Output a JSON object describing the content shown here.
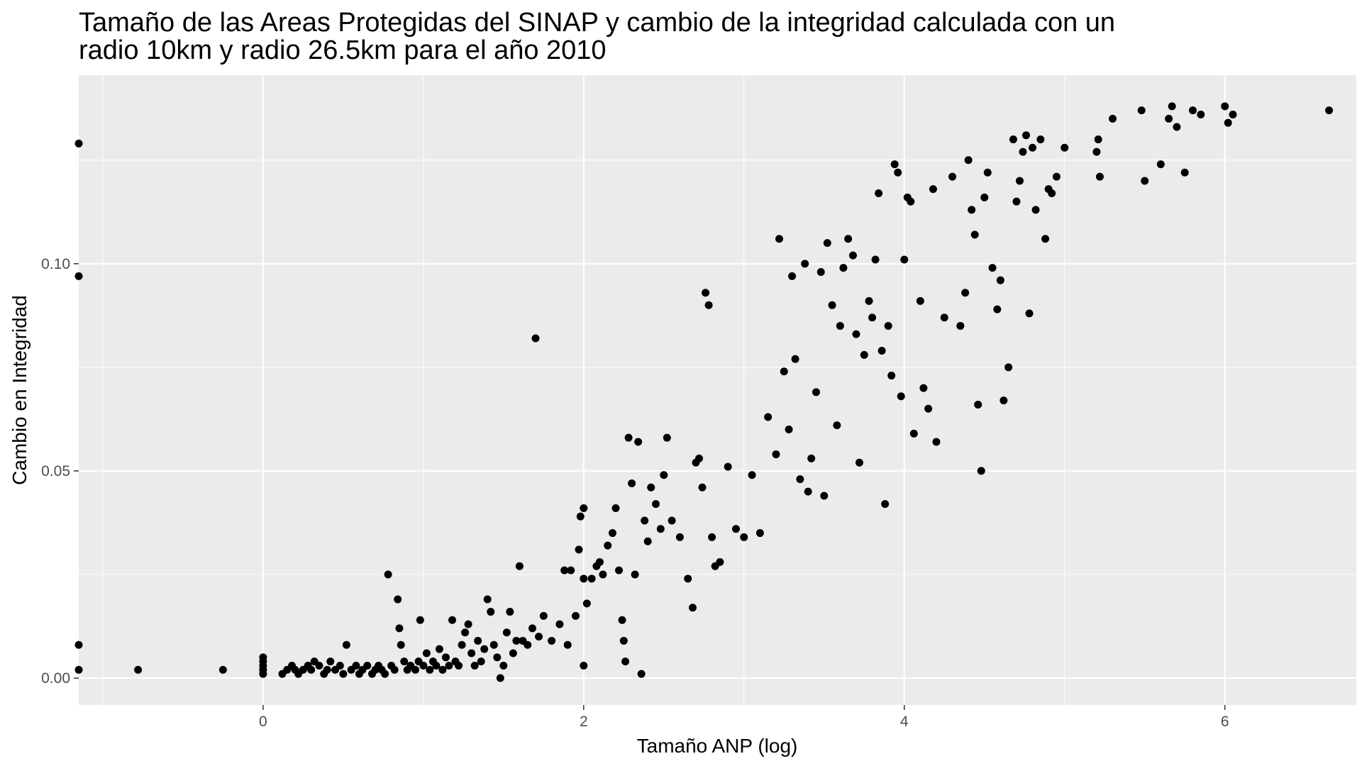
{
  "chart_data": {
    "type": "scatter",
    "title_lines": [
      "Tamaño de las Areas Protegidas del SINAP y cambio de la integridad calculada con un",
      "radio 10km y radio 26.5km para el año 2010"
    ],
    "xlabel": "Tamaño ANP (log)",
    "ylabel": "Cambio en Integridad",
    "xlim": [
      -1.15,
      6.82
    ],
    "ylim": [
      -0.0065,
      0.1455
    ],
    "x_ticks": [
      0,
      2,
      4,
      6
    ],
    "x_tick_labels": [
      "0",
      "2",
      "4",
      "6"
    ],
    "y_ticks": [
      0.0,
      0.05,
      0.1
    ],
    "y_tick_labels": [
      "0.00",
      "0.05",
      "0.10"
    ],
    "grid": true,
    "legend": "none",
    "colors": {
      "panel": "#ebebeb",
      "grid": "#ffffff",
      "point": "#000000",
      "tick": "#333333"
    },
    "points": [
      [
        -1.15,
        0.129
      ],
      [
        -1.15,
        0.097
      ],
      [
        -1.15,
        0.008
      ],
      [
        -1.15,
        0.002
      ],
      [
        -0.78,
        0.002
      ],
      [
        -0.25,
        0.002
      ],
      [
        0.0,
        0.005
      ],
      [
        0.0,
        0.004
      ],
      [
        0.0,
        0.003
      ],
      [
        0.0,
        0.002
      ],
      [
        0.0,
        0.001
      ],
      [
        0.12,
        0.001
      ],
      [
        0.15,
        0.002
      ],
      [
        0.18,
        0.003
      ],
      [
        0.2,
        0.002
      ],
      [
        0.22,
        0.001
      ],
      [
        0.25,
        0.002
      ],
      [
        0.28,
        0.003
      ],
      [
        0.3,
        0.002
      ],
      [
        0.32,
        0.004
      ],
      [
        0.35,
        0.003
      ],
      [
        0.38,
        0.001
      ],
      [
        0.4,
        0.002
      ],
      [
        0.42,
        0.004
      ],
      [
        0.45,
        0.002
      ],
      [
        0.48,
        0.003
      ],
      [
        0.5,
        0.001
      ],
      [
        0.52,
        0.008
      ],
      [
        0.55,
        0.002
      ],
      [
        0.58,
        0.003
      ],
      [
        0.6,
        0.001
      ],
      [
        0.62,
        0.002
      ],
      [
        0.65,
        0.003
      ],
      [
        0.68,
        0.001
      ],
      [
        0.7,
        0.002
      ],
      [
        0.72,
        0.003
      ],
      [
        0.74,
        0.002
      ],
      [
        0.76,
        0.001
      ],
      [
        0.78,
        0.025
      ],
      [
        0.8,
        0.003
      ],
      [
        0.82,
        0.002
      ],
      [
        0.84,
        0.019
      ],
      [
        0.85,
        0.012
      ],
      [
        0.86,
        0.008
      ],
      [
        0.88,
        0.004
      ],
      [
        0.9,
        0.002
      ],
      [
        0.92,
        0.003
      ],
      [
        0.95,
        0.002
      ],
      [
        0.97,
        0.004
      ],
      [
        0.98,
        0.014
      ],
      [
        1.0,
        0.003
      ],
      [
        1.02,
        0.006
      ],
      [
        1.04,
        0.002
      ],
      [
        1.06,
        0.004
      ],
      [
        1.08,
        0.003
      ],
      [
        1.1,
        0.007
      ],
      [
        1.12,
        0.002
      ],
      [
        1.14,
        0.005
      ],
      [
        1.16,
        0.003
      ],
      [
        1.18,
        0.014
      ],
      [
        1.2,
        0.004
      ],
      [
        1.22,
        0.003
      ],
      [
        1.24,
        0.008
      ],
      [
        1.26,
        0.011
      ],
      [
        1.28,
        0.013
      ],
      [
        1.3,
        0.006
      ],
      [
        1.32,
        0.003
      ],
      [
        1.34,
        0.009
      ],
      [
        1.36,
        0.004
      ],
      [
        1.38,
        0.007
      ],
      [
        1.4,
        0.019
      ],
      [
        1.42,
        0.016
      ],
      [
        1.44,
        0.008
      ],
      [
        1.46,
        0.005
      ],
      [
        1.48,
        0.0
      ],
      [
        1.5,
        0.003
      ],
      [
        1.52,
        0.011
      ],
      [
        1.54,
        0.016
      ],
      [
        1.56,
        0.006
      ],
      [
        1.58,
        0.009
      ],
      [
        1.6,
        0.027
      ],
      [
        1.62,
        0.009
      ],
      [
        1.65,
        0.008
      ],
      [
        1.68,
        0.012
      ],
      [
        1.7,
        0.082
      ],
      [
        1.72,
        0.01
      ],
      [
        1.75,
        0.015
      ],
      [
        1.8,
        0.009
      ],
      [
        1.85,
        0.013
      ],
      [
        1.88,
        0.026
      ],
      [
        1.9,
        0.008
      ],
      [
        1.92,
        0.026
      ],
      [
        1.95,
        0.015
      ],
      [
        1.97,
        0.031
      ],
      [
        1.98,
        0.039
      ],
      [
        2.0,
        0.041
      ],
      [
        2.0,
        0.024
      ],
      [
        2.0,
        0.003
      ],
      [
        2.02,
        0.018
      ],
      [
        2.05,
        0.024
      ],
      [
        2.08,
        0.027
      ],
      [
        2.1,
        0.028
      ],
      [
        2.12,
        0.025
      ],
      [
        2.15,
        0.032
      ],
      [
        2.18,
        0.035
      ],
      [
        2.2,
        0.041
      ],
      [
        2.22,
        0.026
      ],
      [
        2.24,
        0.014
      ],
      [
        2.25,
        0.009
      ],
      [
        2.26,
        0.004
      ],
      [
        2.28,
        0.058
      ],
      [
        2.3,
        0.047
      ],
      [
        2.32,
        0.025
      ],
      [
        2.34,
        0.057
      ],
      [
        2.36,
        0.001
      ],
      [
        2.38,
        0.038
      ],
      [
        2.4,
        0.033
      ],
      [
        2.42,
        0.046
      ],
      [
        2.45,
        0.042
      ],
      [
        2.48,
        0.036
      ],
      [
        2.5,
        0.049
      ],
      [
        2.52,
        0.058
      ],
      [
        2.55,
        0.038
      ],
      [
        2.6,
        0.034
      ],
      [
        2.65,
        0.024
      ],
      [
        2.68,
        0.017
      ],
      [
        2.7,
        0.052
      ],
      [
        2.72,
        0.053
      ],
      [
        2.74,
        0.046
      ],
      [
        2.76,
        0.093
      ],
      [
        2.78,
        0.09
      ],
      [
        2.8,
        0.034
      ],
      [
        2.82,
        0.027
      ],
      [
        2.85,
        0.028
      ],
      [
        2.9,
        0.051
      ],
      [
        2.95,
        0.036
      ],
      [
        3.0,
        0.034
      ],
      [
        3.05,
        0.049
      ],
      [
        3.1,
        0.035
      ],
      [
        3.15,
        0.063
      ],
      [
        3.2,
        0.054
      ],
      [
        3.22,
        0.106
      ],
      [
        3.25,
        0.074
      ],
      [
        3.28,
        0.06
      ],
      [
        3.3,
        0.097
      ],
      [
        3.32,
        0.077
      ],
      [
        3.35,
        0.048
      ],
      [
        3.38,
        0.1
      ],
      [
        3.4,
        0.045
      ],
      [
        3.42,
        0.053
      ],
      [
        3.45,
        0.069
      ],
      [
        3.48,
        0.098
      ],
      [
        3.5,
        0.044
      ],
      [
        3.52,
        0.105
      ],
      [
        3.55,
        0.09
      ],
      [
        3.58,
        0.061
      ],
      [
        3.6,
        0.085
      ],
      [
        3.62,
        0.099
      ],
      [
        3.65,
        0.106
      ],
      [
        3.68,
        0.102
      ],
      [
        3.7,
        0.083
      ],
      [
        3.72,
        0.052
      ],
      [
        3.75,
        0.078
      ],
      [
        3.78,
        0.091
      ],
      [
        3.8,
        0.087
      ],
      [
        3.82,
        0.101
      ],
      [
        3.84,
        0.117
      ],
      [
        3.86,
        0.079
      ],
      [
        3.88,
        0.042
      ],
      [
        3.9,
        0.085
      ],
      [
        3.92,
        0.073
      ],
      [
        3.94,
        0.124
      ],
      [
        3.96,
        0.122
      ],
      [
        3.98,
        0.068
      ],
      [
        4.0,
        0.101
      ],
      [
        4.02,
        0.116
      ],
      [
        4.04,
        0.115
      ],
      [
        4.06,
        0.059
      ],
      [
        4.1,
        0.091
      ],
      [
        4.12,
        0.07
      ],
      [
        4.15,
        0.065
      ],
      [
        4.18,
        0.118
      ],
      [
        4.2,
        0.057
      ],
      [
        4.25,
        0.087
      ],
      [
        4.3,
        0.121
      ],
      [
        4.35,
        0.085
      ],
      [
        4.38,
        0.093
      ],
      [
        4.4,
        0.125
      ],
      [
        4.42,
        0.113
      ],
      [
        4.44,
        0.107
      ],
      [
        4.46,
        0.066
      ],
      [
        4.48,
        0.05
      ],
      [
        4.5,
        0.116
      ],
      [
        4.52,
        0.122
      ],
      [
        4.55,
        0.099
      ],
      [
        4.58,
        0.089
      ],
      [
        4.6,
        0.096
      ],
      [
        4.62,
        0.067
      ],
      [
        4.65,
        0.075
      ],
      [
        4.68,
        0.13
      ],
      [
        4.7,
        0.115
      ],
      [
        4.72,
        0.12
      ],
      [
        4.74,
        0.127
      ],
      [
        4.76,
        0.131
      ],
      [
        4.78,
        0.088
      ],
      [
        4.8,
        0.128
      ],
      [
        4.82,
        0.113
      ],
      [
        4.85,
        0.13
      ],
      [
        4.88,
        0.106
      ],
      [
        4.9,
        0.118
      ],
      [
        4.92,
        0.117
      ],
      [
        4.95,
        0.121
      ],
      [
        5.0,
        0.128
      ],
      [
        5.2,
        0.127
      ],
      [
        5.21,
        0.13
      ],
      [
        5.22,
        0.121
      ],
      [
        5.3,
        0.135
      ],
      [
        5.48,
        0.137
      ],
      [
        5.5,
        0.12
      ],
      [
        5.6,
        0.124
      ],
      [
        5.65,
        0.135
      ],
      [
        5.67,
        0.138
      ],
      [
        5.7,
        0.133
      ],
      [
        5.75,
        0.122
      ],
      [
        5.8,
        0.137
      ],
      [
        5.85,
        0.136
      ],
      [
        6.0,
        0.138
      ],
      [
        6.02,
        0.134
      ],
      [
        6.05,
        0.136
      ],
      [
        6.65,
        0.137
      ]
    ]
  }
}
